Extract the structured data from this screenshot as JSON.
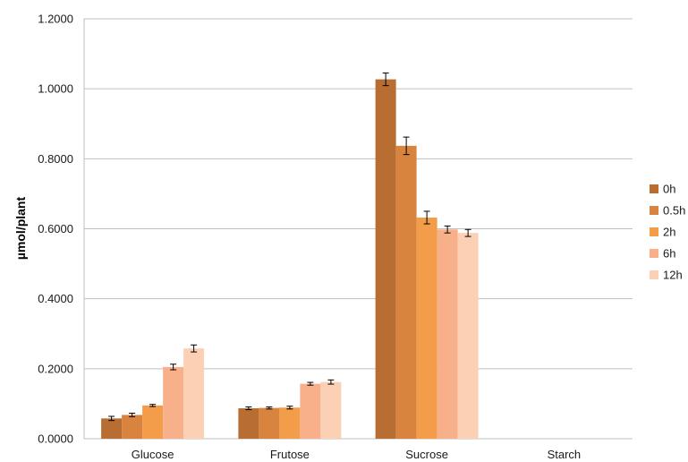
{
  "chart_data": {
    "type": "bar",
    "title": "",
    "xlabel": "",
    "ylabel": "µmol/plant",
    "ylim": [
      0,
      1.2
    ],
    "yticks": [
      "0.0000",
      "0.2000",
      "0.4000",
      "0.6000",
      "0.8000",
      "1.0000",
      "1.2000"
    ],
    "ytick_values": [
      0,
      0.2,
      0.4,
      0.6,
      0.8,
      1.0,
      1.2
    ],
    "grid": true,
    "legend_position": "right",
    "categories": [
      "Glucose",
      "Frutose",
      "Sucrose",
      "Starch"
    ],
    "series": [
      {
        "name": "0h",
        "color": "#b86e33",
        "values": [
          0.058,
          0.087,
          1.027,
          null
        ],
        "errors": [
          0.006,
          0.004,
          0.018,
          null
        ]
      },
      {
        "name": "0.5h",
        "color": "#d9843e",
        "values": [
          0.068,
          0.088,
          0.837,
          null
        ],
        "errors": [
          0.005,
          0.003,
          0.025,
          null
        ]
      },
      {
        "name": "2h",
        "color": "#f39c4a",
        "values": [
          0.095,
          0.089,
          0.632,
          null
        ],
        "errors": [
          0.003,
          0.004,
          0.018,
          null
        ]
      },
      {
        "name": "6h",
        "color": "#f7b08a",
        "values": [
          0.205,
          0.157,
          0.598,
          null
        ],
        "errors": [
          0.008,
          0.004,
          0.01,
          null
        ]
      },
      {
        "name": "12h",
        "color": "#fbd0b5",
        "values": [
          0.258,
          0.162,
          0.588,
          null
        ],
        "errors": [
          0.01,
          0.006,
          0.01,
          null
        ]
      }
    ]
  }
}
